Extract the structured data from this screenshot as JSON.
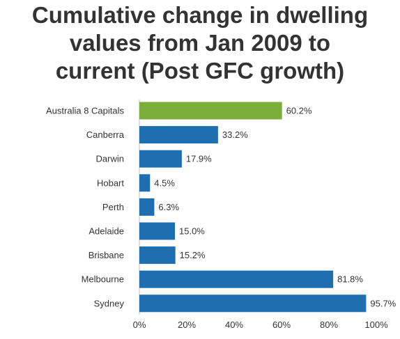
{
  "chart_data": {
    "type": "bar",
    "orientation": "horizontal",
    "title_lines": [
      "Cumulative change in dwelling",
      "values from Jan 2009 to",
      "current (Post GFC growth)"
    ],
    "categories": [
      "Australia  8 Capitals",
      "Canberra",
      "Darwin",
      "Hobart",
      "Perth",
      "Adelaide",
      "Brisbane",
      "Melbourne",
      "Sydney"
    ],
    "values": [
      60.2,
      33.2,
      17.9,
      4.5,
      6.3,
      15.0,
      15.2,
      81.8,
      95.7
    ],
    "value_labels": [
      "60.2%",
      "33.2%",
      "17.9%",
      "4.5%",
      "6.3%",
      "15.0%",
      "15.2%",
      "81.8%",
      "95.7%"
    ],
    "bar_colors": [
      "#7aad3a",
      "#1f6fb0",
      "#1f6fb0",
      "#1f6fb0",
      "#1f6fb0",
      "#1f6fb0",
      "#1f6fb0",
      "#1f6fb0",
      "#1f6fb0"
    ],
    "x_ticks": [
      0,
      20,
      40,
      60,
      80,
      100
    ],
    "x_tick_labels": [
      "0%",
      "20%",
      "40%",
      "60%",
      "80%",
      "100%"
    ],
    "xlim": [
      0,
      100
    ],
    "grid": false,
    "legend": "none"
  }
}
